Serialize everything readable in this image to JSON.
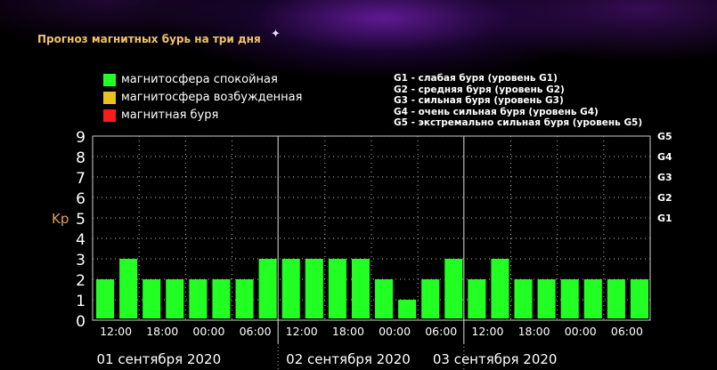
{
  "header": {
    "title": "Прогноз магнитных бурь на три дня",
    "star_icon": "sparkle-icon"
  },
  "legend": [
    {
      "label": "магнитосфера спокойная",
      "color": "#22ff22"
    },
    {
      "label": "магнитосфера возбужденная",
      "color": "#e8c21e"
    },
    {
      "label": "магнитная буря",
      "color": "#ff1a1a"
    }
  ],
  "g_levels": [
    "G1 - слабая буря (уровень G1)",
    "G2 - средняя буря (уровень G2)",
    "G3 - сильная буря (уровень G3)",
    "G4 - очень сильная буря (уровень G4)",
    "G5 - экстремально сильная буря (уровень G5)"
  ],
  "chart_data": {
    "type": "bar",
    "ylabel": "Kp",
    "ylim": [
      0,
      9
    ],
    "y_ticks": [
      "0",
      "1",
      "2",
      "3",
      "4",
      "5",
      "6",
      "7",
      "8",
      "9"
    ],
    "right_ticks": [
      {
        "value": 5,
        "label": "G1"
      },
      {
        "value": 6,
        "label": "G2"
      },
      {
        "value": 7,
        "label": "G3"
      },
      {
        "value": 8,
        "label": "G4"
      },
      {
        "value": 9,
        "label": "G5"
      }
    ],
    "x_tick_labels": [
      "12:00",
      "18:00",
      "00:00",
      "06:00",
      "12:00",
      "18:00",
      "00:00",
      "06:00",
      "12:00",
      "18:00",
      "00:00",
      "06:00"
    ],
    "day_labels": [
      "01 сентября 2020",
      "02 сентября 2020",
      "03 сентября 2020"
    ],
    "values": [
      2,
      3,
      2,
      2,
      2,
      2,
      2,
      3,
      3,
      3,
      3,
      3,
      2,
      1,
      2,
      3,
      2,
      3,
      2,
      2,
      2,
      2,
      2,
      2
    ],
    "bar_color": "#22ff22",
    "grid": true
  }
}
